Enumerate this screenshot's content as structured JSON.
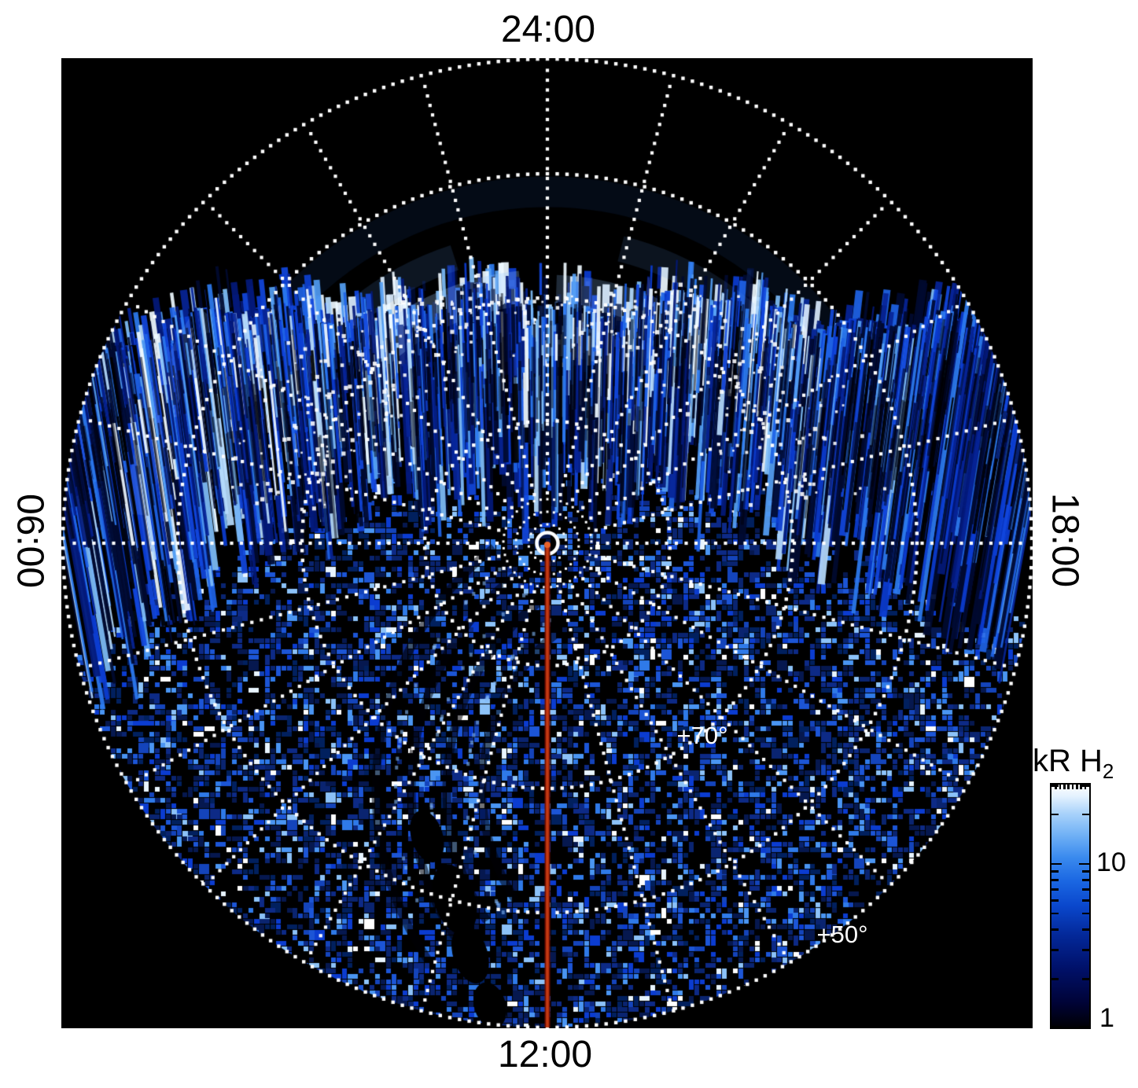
{
  "figure": {
    "background": "#ffffff",
    "plot_background": "#000000"
  },
  "time_labels": {
    "top": "24:00",
    "right": "18:00",
    "bottom": "12:00",
    "left": "06:00"
  },
  "annotations": {
    "lat70": "+70°",
    "lat50": "+50°"
  },
  "colorbar": {
    "title_main": "kR H",
    "title_sub": "2",
    "tick_10": "10",
    "tick_1": "1"
  },
  "colors": {
    "grid": "#ffffff",
    "annotation_text": "#ffffff",
    "meridian_core": "#c43a12",
    "meridian_edge": "#6f0e00",
    "data_bright": "#7fbef8",
    "data_mid": "#1e63e6",
    "data_dark": "#06184f"
  },
  "chart_data": {
    "type": "heatmap",
    "projection": "polar",
    "title": "kR H2 emission map (polar view)",
    "angular_axis": {
      "label_type": "local_time",
      "labels": [
        "24:00",
        "18:00",
        "12:00",
        "06:00"
      ],
      "positions_deg_from_top_clockwise": [
        0,
        90,
        180,
        270
      ],
      "gridline_interval_hours": 1,
      "gridline_interval_deg": 15
    },
    "radial_axis": {
      "label_type": "planetographic_latitude",
      "center_latitude_deg": 90,
      "gridline_circles_deg": [
        80,
        70,
        60,
        50
      ],
      "labeled_circles": [
        "+70°",
        "+50°"
      ],
      "outer_edge_latitude_deg": 50
    },
    "colorbar": {
      "label": "kR H2",
      "scale": "log",
      "min": 1,
      "max": 30,
      "major_ticks": [
        1,
        10
      ],
      "minor_ticks": [
        2,
        3,
        4,
        5,
        6,
        7,
        8,
        9,
        20,
        30
      ],
      "colormap": "black-navy-blue-white"
    },
    "special_lines": [
      {
        "name": "noon_meridian",
        "local_time": "12:00",
        "from": "pole",
        "to": "outer_edge",
        "color": "#c43a12"
      }
    ],
    "markers": [
      {
        "name": "pole_marker",
        "shape": "white_ring_with_dotted_circles",
        "position": "center"
      }
    ],
    "features": [
      "bright auroral emission band between ~60° and ~75° latitude on the nightside (around 24:00), rendered as bright light-blue arcs",
      "dense vertical radiance streaks filling latitudes below the observation horizon across the disk",
      "sparse speckled low-level emission (1-3 kR) over the dayside half of the disk",
      "no data (black) in the region poleward of the horizon near the top of the plot"
    ]
  }
}
